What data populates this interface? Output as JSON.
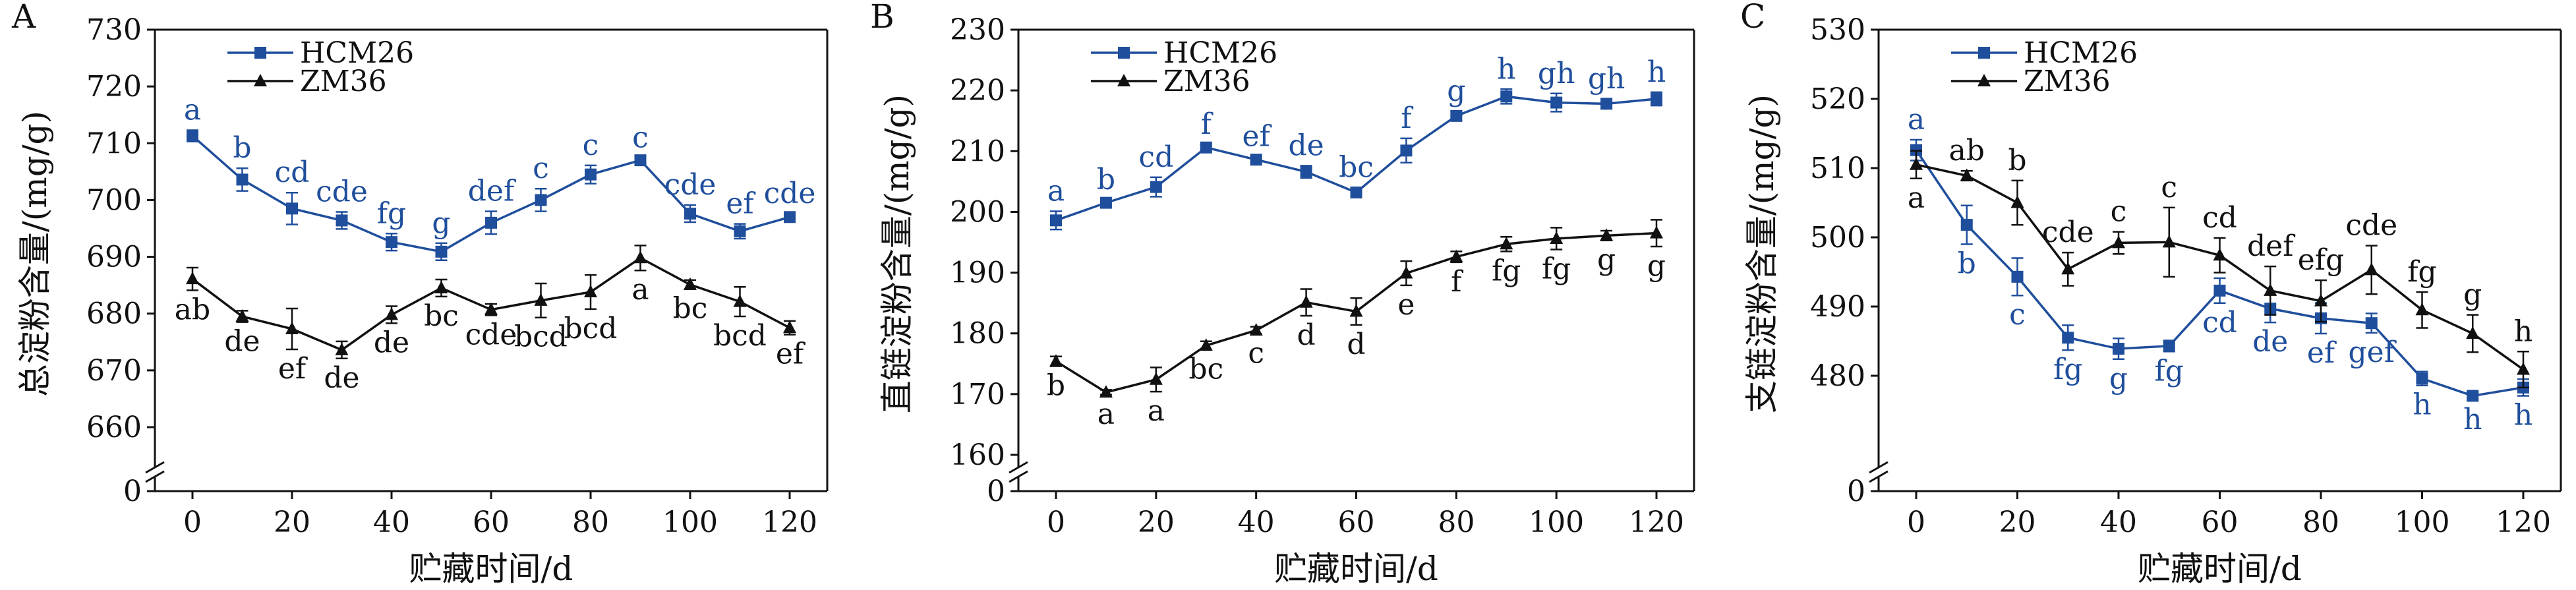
{
  "figure": {
    "x_unit_label": "贮藏时间/d"
  },
  "colors": {
    "hcm26": "#1f4e9c",
    "zm36": "#111111",
    "axis": "#111111"
  },
  "chart_data": [
    {
      "panel_label": "A",
      "type": "line",
      "ylabel": "总淀粉含量/(mg/g)",
      "xlabel": "贮藏时间/d",
      "x": [
        0,
        10,
        20,
        30,
        40,
        50,
        60,
        70,
        80,
        90,
        100,
        110,
        120
      ],
      "x_ticks": [
        0,
        20,
        40,
        60,
        80,
        100,
        120
      ],
      "xlim": [
        0,
        120
      ],
      "y_ticks": [
        0,
        660,
        670,
        680,
        690,
        700,
        710,
        720,
        730
      ],
      "ylim_broken": [
        660,
        730
      ],
      "axis_break": true,
      "legend_position": "top-left",
      "series": [
        {
          "name": "HCM26",
          "marker": "square",
          "color": "#1f4e9c",
          "values": [
            711.3,
            703.6,
            698.5,
            696.4,
            692.6,
            690.9,
            696.0,
            700.0,
            704.5,
            707.0,
            697.6,
            694.5,
            697.0
          ],
          "errors": [
            1.0,
            2.0,
            2.8,
            1.5,
            1.5,
            1.5,
            2.0,
            2.0,
            1.6,
            0.4,
            1.5,
            1.3,
            0.6
          ],
          "letters": [
            "a",
            "b",
            "cd",
            "cde",
            "fg",
            "g",
            "def",
            "c",
            "c",
            "c",
            "cde",
            "ef",
            "cde"
          ]
        },
        {
          "name": "ZM36",
          "marker": "triangle",
          "color": "#111111",
          "values": [
            686.1,
            679.5,
            677.3,
            673.6,
            679.8,
            684.5,
            680.7,
            682.3,
            683.8,
            689.8,
            685.1,
            682.1,
            677.5
          ],
          "errors": [
            2.0,
            1.0,
            3.6,
            1.5,
            1.5,
            1.5,
            1.0,
            3.0,
            3.0,
            2.2,
            0.8,
            2.6,
            1.2
          ],
          "letters": [
            "ab",
            "de",
            "ef",
            "de",
            "de",
            "bc",
            "cde",
            "bcd",
            "bcd",
            "a",
            "bc",
            "bcd",
            "ef"
          ]
        }
      ]
    },
    {
      "panel_label": "B",
      "type": "line",
      "ylabel": "直链淀粉含量/(mg/g)",
      "xlabel": "贮藏时间/d",
      "x": [
        0,
        10,
        20,
        30,
        40,
        50,
        60,
        70,
        80,
        90,
        100,
        110,
        120
      ],
      "x_ticks": [
        0,
        20,
        40,
        60,
        80,
        100,
        120
      ],
      "xlim": [
        0,
        120
      ],
      "y_ticks": [
        0,
        160,
        170,
        180,
        190,
        200,
        210,
        220,
        230
      ],
      "ylim_broken": [
        160,
        230
      ],
      "axis_break": true,
      "legend_position": "top-left",
      "series": [
        {
          "name": "HCM26",
          "marker": "square",
          "color": "#1f4e9c",
          "values": [
            198.6,
            201.5,
            204.1,
            210.6,
            208.6,
            206.6,
            203.2,
            210.1,
            215.8,
            219.0,
            218.0,
            217.8,
            218.6
          ],
          "errors": [
            1.5,
            0.5,
            1.6,
            0.5,
            0.5,
            1.0,
            0.8,
            2.0,
            0.8,
            1.2,
            1.5,
            0.8,
            1.1
          ],
          "letters": [
            "a",
            "b",
            "cd",
            "f",
            "ef",
            "de",
            "bc",
            "f",
            "g",
            "h",
            "gh",
            "gh",
            "h"
          ]
        },
        {
          "name": "ZM36",
          "marker": "triangle",
          "color": "#111111",
          "values": [
            175.4,
            170.3,
            172.4,
            178.0,
            180.5,
            185.1,
            183.6,
            189.9,
            192.6,
            194.7,
            195.6,
            196.1,
            196.5
          ],
          "errors": [
            0.8,
            0.4,
            2.0,
            0.7,
            0.6,
            2.2,
            2.2,
            2.0,
            0.9,
            1.2,
            1.8,
            0.8,
            2.2
          ],
          "letters": [
            "b",
            "a",
            "a",
            "bc",
            "c",
            "d",
            "d",
            "e",
            "f",
            "fg",
            "fg",
            "g",
            "g"
          ]
        }
      ]
    },
    {
      "panel_label": "C",
      "type": "line",
      "ylabel": "支链淀粉含量/(mg/g)",
      "xlabel": "贮藏时间/d",
      "x": [
        0,
        10,
        20,
        30,
        40,
        50,
        60,
        70,
        80,
        90,
        100,
        110,
        120
      ],
      "x_ticks": [
        0,
        20,
        40,
        60,
        80,
        100,
        120
      ],
      "xlim": [
        0,
        120
      ],
      "y_ticks": [
        0,
        480,
        490,
        500,
        510,
        520,
        530
      ],
      "ylim_broken": [
        470,
        530
      ],
      "axis_break": true,
      "legend_position": "top-left",
      "series": [
        {
          "name": "HCM26",
          "marker": "square",
          "color": "#1f4e9c",
          "values": [
            512.6,
            501.8,
            494.3,
            485.5,
            483.9,
            484.3,
            492.3,
            489.7,
            488.3,
            487.6,
            479.6,
            477.1,
            478.3
          ],
          "errors": [
            1.5,
            2.8,
            2.7,
            1.8,
            1.5,
            0.8,
            1.8,
            2.0,
            2.2,
            1.4,
            1.0,
            0.6,
            1.2
          ],
          "letters": [
            "a",
            "b",
            "c",
            "fg",
            "g",
            "fg",
            "cd",
            "de",
            "ef",
            "gef",
            "h",
            "h",
            "h"
          ]
        },
        {
          "name": "ZM36",
          "marker": "triangle",
          "color": "#111111",
          "values": [
            510.5,
            508.9,
            505.0,
            495.4,
            499.2,
            499.3,
            497.4,
            492.3,
            490.8,
            495.3,
            489.5,
            486.1,
            480.9
          ],
          "errors": [
            2.0,
            0.7,
            3.2,
            2.4,
            1.6,
            5.0,
            2.5,
            3.5,
            3.0,
            3.5,
            2.6,
            2.7,
            2.6
          ],
          "letters": [
            "a",
            "ab",
            "b",
            "cde",
            "c",
            "c",
            "cd",
            "def",
            "efg",
            "cde",
            "fg",
            "g",
            "h"
          ]
        }
      ]
    }
  ]
}
